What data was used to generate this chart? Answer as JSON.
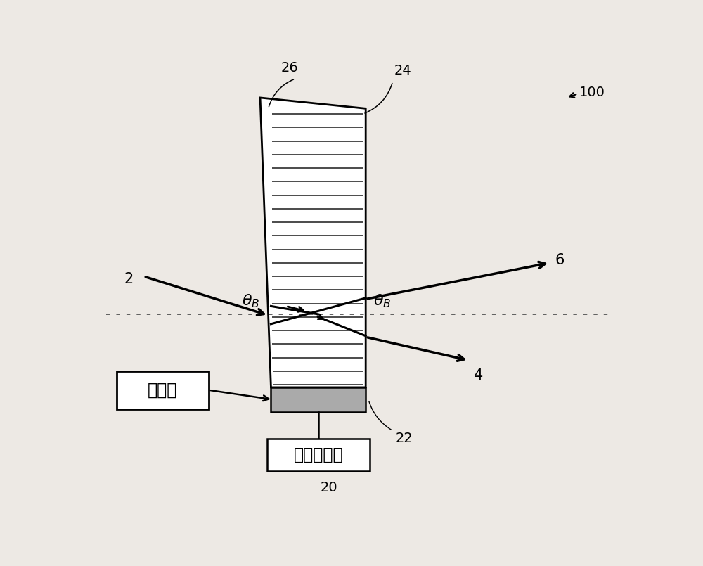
{
  "bg_color": "#ede9e4",
  "n_lines": 21,
  "label_20": "20",
  "label_22": "22",
  "label_24": "24",
  "label_26": "26",
  "label_2": "2",
  "label_4": "4",
  "label_6": "6",
  "label_100": "100",
  "transducer_text": "换能器",
  "rf_text": "射频信号源"
}
